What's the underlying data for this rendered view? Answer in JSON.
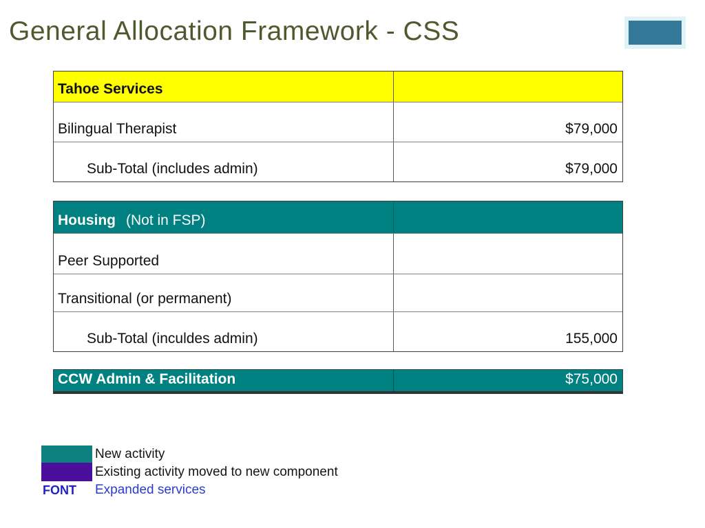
{
  "title": {
    "text": "General Allocation Framework - CSS",
    "color": "#4e5a2e"
  },
  "accent_rect": {
    "color": "#35789a"
  },
  "tahoe_table": {
    "header": {
      "label": "Tahoe Services",
      "bg": "#ffff00"
    },
    "rows": [
      {
        "label": "Bilingual Therapist",
        "value": "$79,000"
      },
      {
        "label": "Sub-Total (includes admin)",
        "value": "$79,000"
      }
    ]
  },
  "housing_table": {
    "header": {
      "label_bold": "Housing",
      "label_note": "(Not in FSP)",
      "bg": "#008080"
    },
    "rows": [
      {
        "label": "Peer Supported",
        "value": ""
      },
      {
        "label": "Transitional (or permanent)",
        "value": ""
      },
      {
        "label": "Sub-Total (inculdes admin)",
        "value": "155,000"
      }
    ]
  },
  "ccw_row": {
    "label": "CCW Admin & Facilitation",
    "value": "$75,000",
    "bg": "#008080"
  },
  "legend": {
    "items": [
      {
        "label": "New activity",
        "swatch": "#0f8080"
      },
      {
        "label": "Existing activity moved to new component",
        "swatch": "#4b0f9c"
      }
    ],
    "font_key": {
      "label": "FONT",
      "color": "#2222bb"
    },
    "font_desc": {
      "label": "Expanded services",
      "color": "#2a3ccd"
    }
  }
}
